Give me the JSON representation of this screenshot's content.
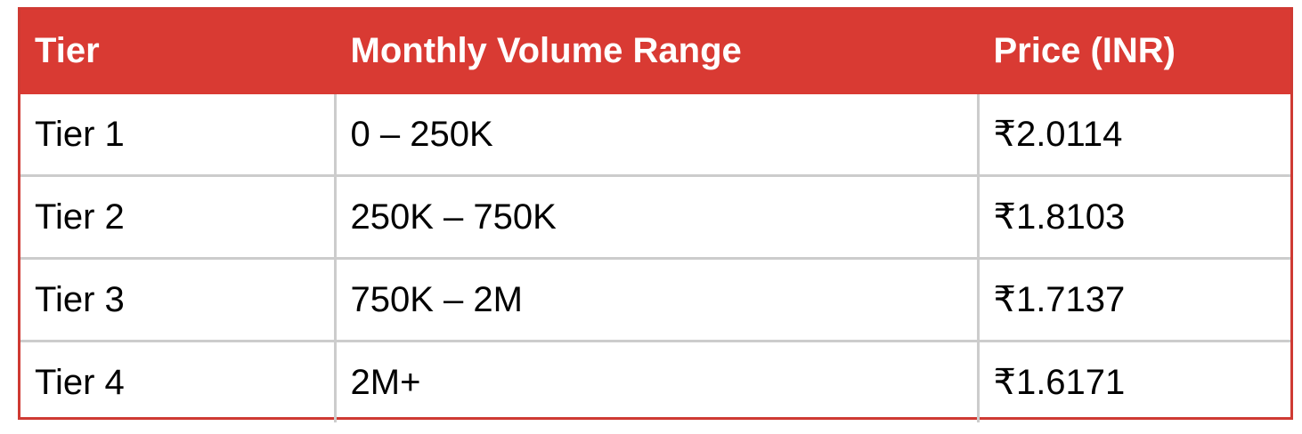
{
  "table": {
    "header": [
      "Tier",
      "Monthly Volume Range",
      "Price (INR)"
    ],
    "rows": [
      [
        "Tier 1",
        "0 – 250K",
        "₹2.0114"
      ],
      [
        "Tier 2",
        "250K – 750K",
        "₹1.8103"
      ],
      [
        "Tier 3",
        "750K – 2M",
        "₹1.7137"
      ],
      [
        "Tier 4",
        "2M+",
        "₹1.6171"
      ]
    ]
  }
}
